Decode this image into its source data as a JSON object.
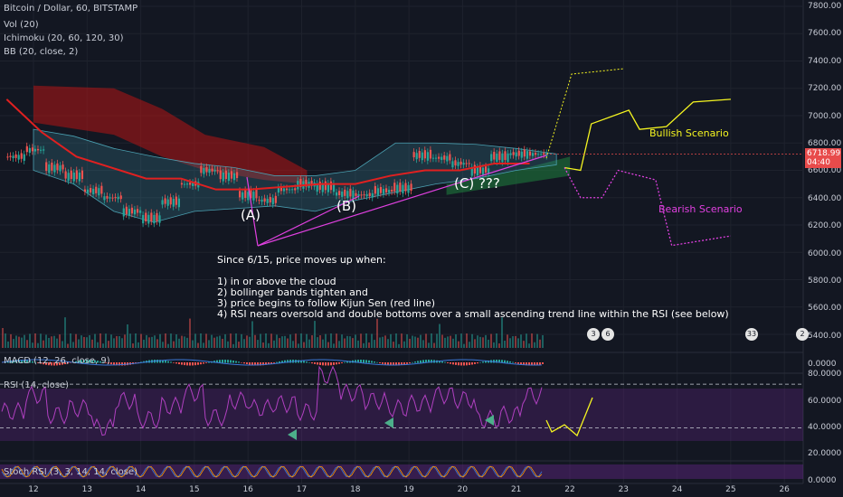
{
  "header": {
    "title": "Bitcoin / Dollar, 60, BITSTAMP",
    "indicators": [
      "Vol (20)",
      "Ichimoku (20, 60, 120, 30)",
      "BB (20, close, 2)"
    ]
  },
  "panes": {
    "macd_label": "MACD (12, 26, close, 9)",
    "rsi_label": "RSI (14, close)",
    "stoch_label": "Stoch RSI (3, 3, 14, 14, close)"
  },
  "price_axis": {
    "ticks": [
      "7800.00",
      "7600.00",
      "7400.00",
      "7200.00",
      "7000.00",
      "6800.00",
      "6600.00",
      "6400.00",
      "6200.00",
      "6000.00",
      "5800.00",
      "5600.00",
      "5400.00"
    ],
    "current_price": "6718.99",
    "countdown": "04:40"
  },
  "macd_axis": {
    "ticks": [
      "0.0000"
    ]
  },
  "rsi_axis": {
    "ticks": [
      "80.0000",
      "60.0000",
      "40.0000",
      "20.0000"
    ]
  },
  "stoch_axis": {
    "ticks": [
      "0.0000"
    ]
  },
  "time_axis": {
    "ticks": [
      "12",
      "13",
      "14",
      "15",
      "16",
      "17",
      "18",
      "19",
      "20",
      "21",
      "22",
      "23",
      "24",
      "25",
      "26"
    ]
  },
  "annotations": {
    "a": "(A)",
    "b": "(B)",
    "c": "(C) ???",
    "bullish": "Bullish Scenario",
    "bearish": "Bearish Scenario"
  },
  "note": {
    "intro": "Since 6/15, price moves up when:",
    "items": [
      "1)  in or above the cloud",
      "2) bollinger bands tighten and",
      "3) price begins to follow Kijun Sen (red line)",
      "4) RSI nears oversold and double bottoms over a small ascending trend line within the RSI (see below)"
    ]
  },
  "event_badges": [
    "3",
    "6",
    "33",
    "2"
  ],
  "colors": {
    "background": "#131722",
    "up_candle": "#26a69a",
    "down_candle": "#ef5350",
    "kijun": "#e02020",
    "bullish": "#f5f520",
    "bearish": "#e040e0",
    "rsi": "#b040c0",
    "arrow": "#4caf8a"
  },
  "chart_data": {
    "type": "candlestick",
    "x_labels": [
      "12",
      "13",
      "14",
      "15",
      "16",
      "17",
      "18",
      "19",
      "20",
      "21"
    ],
    "close_path": [
      6700,
      6750,
      6620,
      6560,
      6450,
      6400,
      6300,
      6250,
      6370,
      6500,
      6600,
      6560,
      6420,
      6380,
      6460,
      6500,
      6480,
      6430,
      6420,
      6450,
      6470,
      6710,
      6690,
      6650,
      6600,
      6700,
      6720,
      6719
    ],
    "kijun": [
      7120,
      6880,
      6700,
      6620,
      6540,
      6540,
      6460,
      6460,
      6480,
      6500,
      6500,
      6560,
      6600,
      6600,
      6650,
      6650
    ],
    "ylim": [
      5300,
      7850
    ],
    "rsi": [
      45,
      60,
      42,
      48,
      30,
      55,
      38,
      50,
      62,
      40,
      55,
      48,
      52,
      45,
      78,
      62,
      55,
      48,
      52,
      60,
      56,
      38,
      42,
      60
    ],
    "rsi_levels": [
      70,
      30
    ],
    "scenarios": {
      "bullish": [
        [
          21.9,
          6620
        ],
        [
          22.2,
          6600
        ],
        [
          22.4,
          6940
        ],
        [
          23.1,
          7040
        ],
        [
          23.3,
          6900
        ],
        [
          23.8,
          6920
        ],
        [
          24.3,
          7100
        ],
        [
          25,
          7120
        ]
      ],
      "bearish": [
        [
          21.9,
          6620
        ],
        [
          22.2,
          6400
        ],
        [
          22.6,
          6400
        ],
        [
          22.9,
          6600
        ],
        [
          23.6,
          6530
        ],
        [
          23.9,
          6050
        ],
        [
          25,
          6120
        ]
      ]
    }
  }
}
